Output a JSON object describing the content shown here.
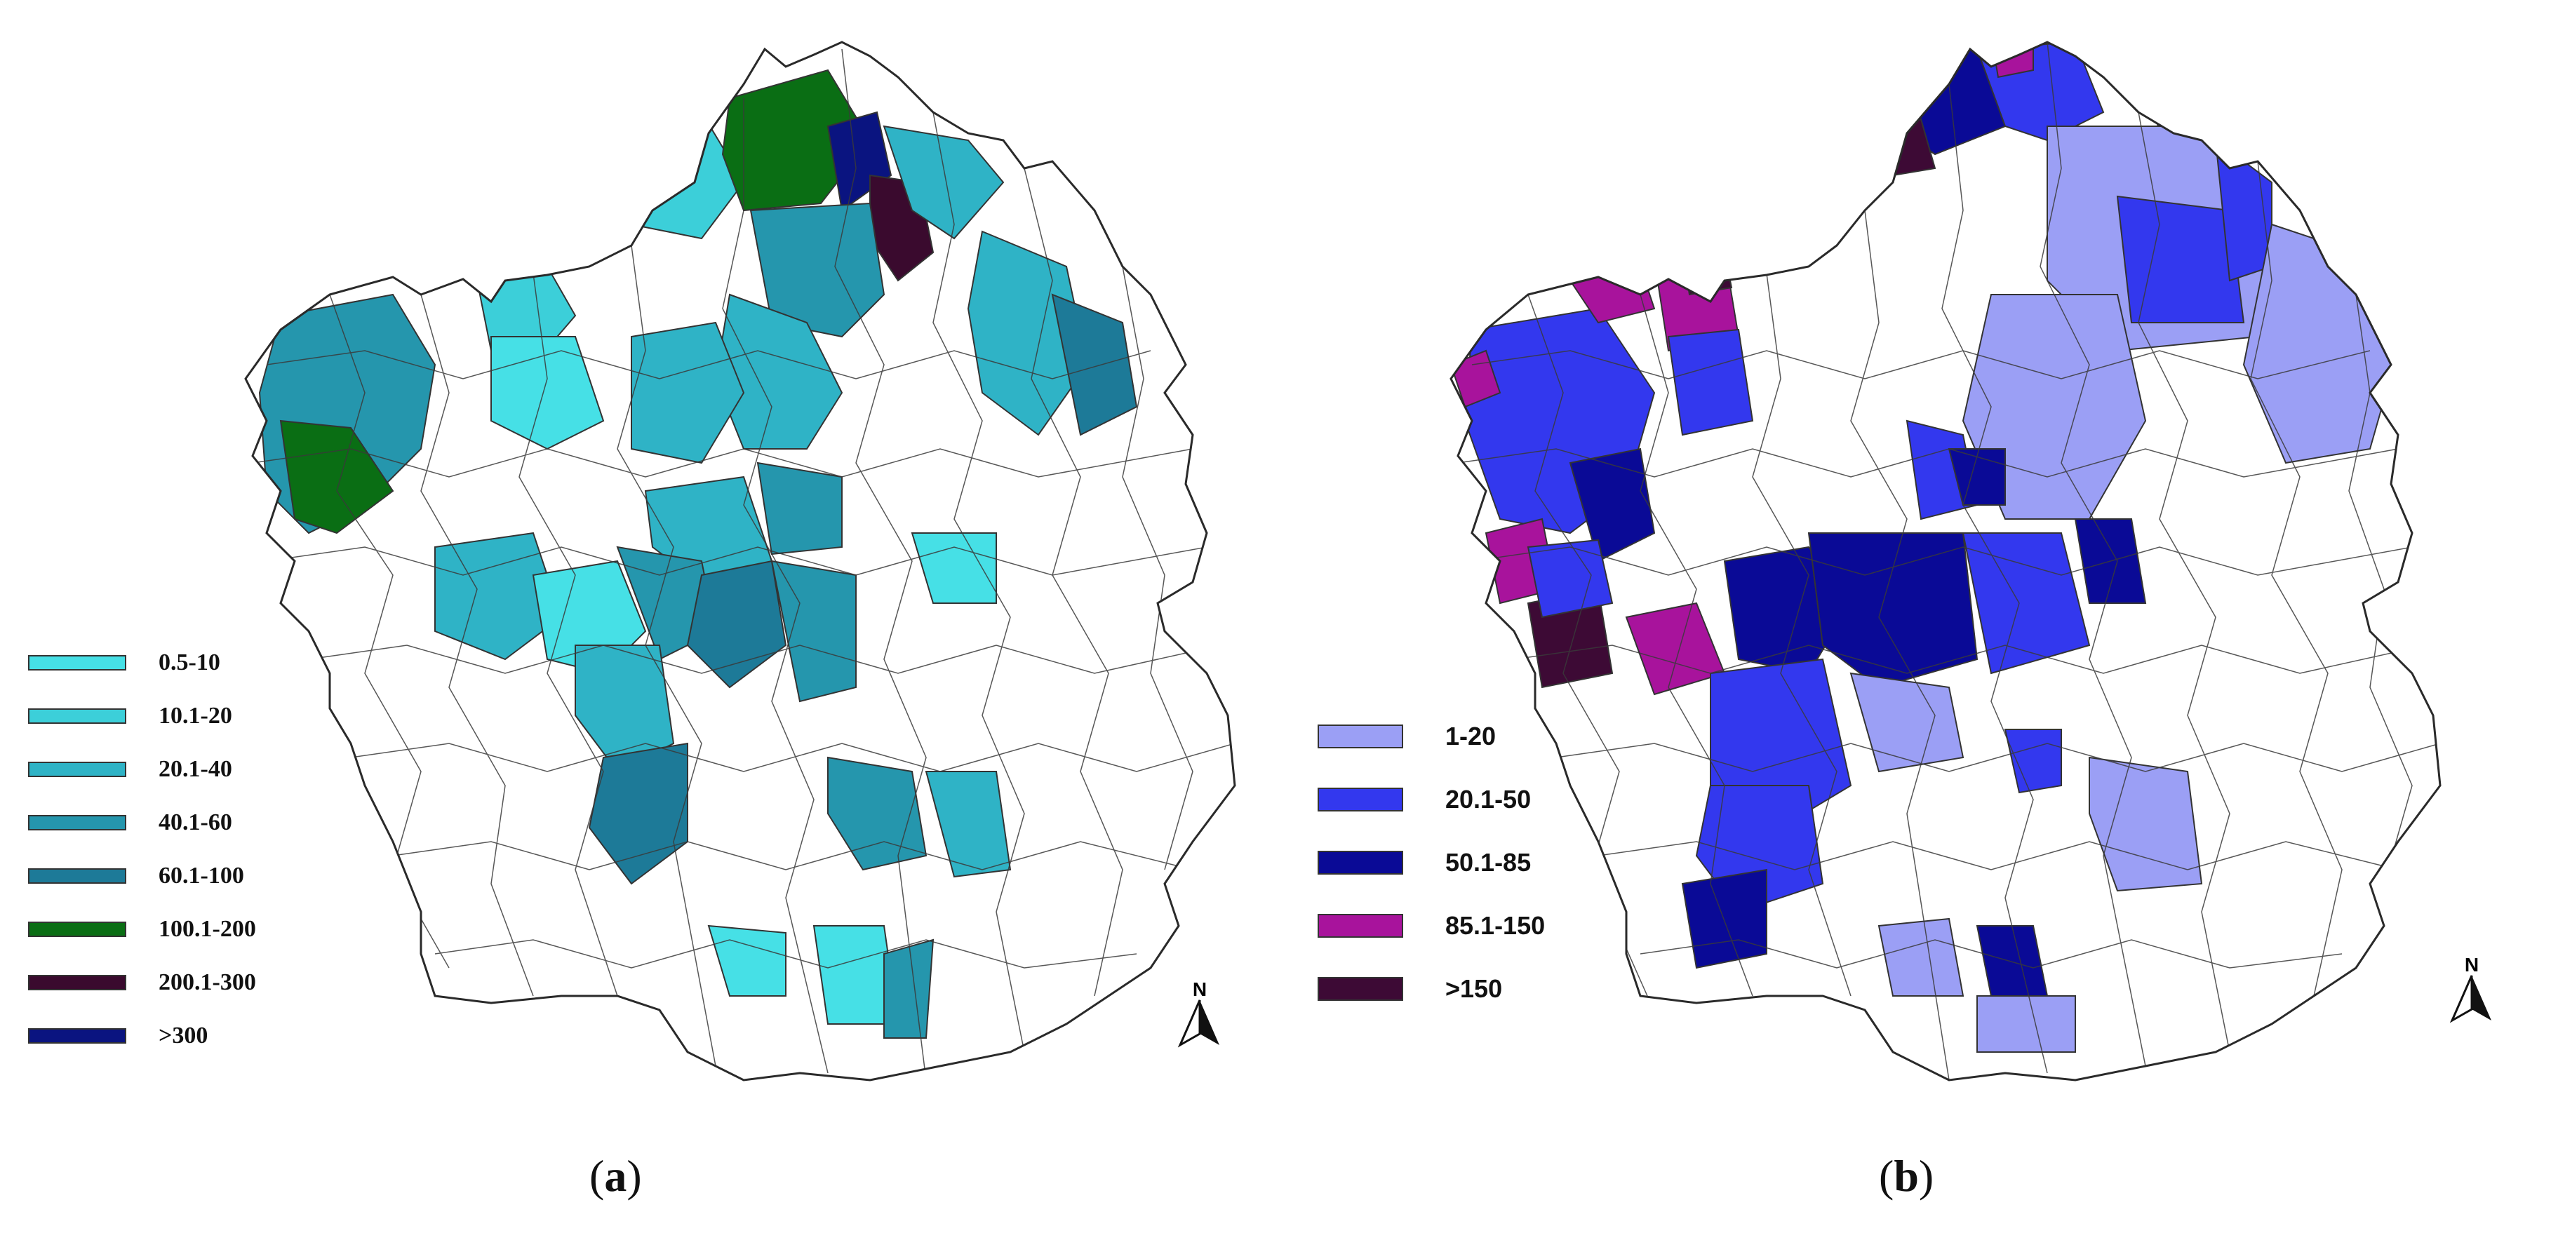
{
  "panels": [
    {
      "id": "a",
      "caption_open": "(",
      "caption_letter": "a",
      "caption_close": ")",
      "legend": [
        {
          "label": "0.5-10",
          "color": "#46e0e6"
        },
        {
          "label": "10.1-20",
          "color": "#3ccfd9"
        },
        {
          "label": "20.1-40",
          "color": "#2fb3c6"
        },
        {
          "label": "40.1-60",
          "color": "#2596ad"
        },
        {
          "label": "60.1-100",
          "color": "#1d7a98"
        },
        {
          "label": "100.1-200",
          "color": "#0a6e14"
        },
        {
          "label": "200.1-300",
          "color": "#3a0a2e"
        },
        {
          "label": ">300",
          "color": "#0a1480"
        }
      ],
      "north_label": "N"
    },
    {
      "id": "b",
      "caption_open": "(",
      "caption_letter": "b",
      "caption_close": ")",
      "legend": [
        {
          "label": "1-20",
          "color": "#9b9ff5"
        },
        {
          "label": "20.1-50",
          "color": "#3338ee"
        },
        {
          "label": "50.1-85",
          "color": "#0a0a96"
        },
        {
          "label": "85.1-150",
          "color": "#a8139c"
        },
        {
          "label": ">150",
          "color": "#3d0a35"
        }
      ],
      "north_label": "N"
    }
  ]
}
